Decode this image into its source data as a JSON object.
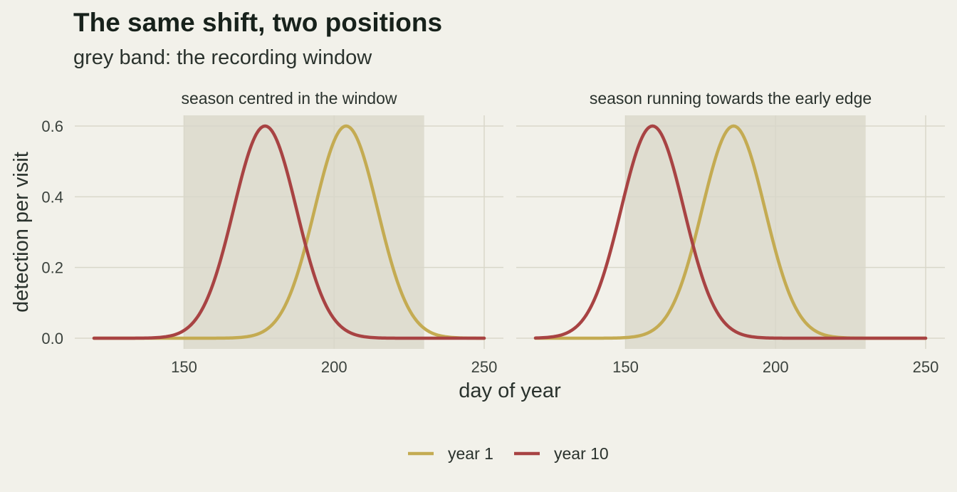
{
  "chart_data": {
    "type": "line",
    "title": "The same shift, two positions",
    "subtitle": "grey band: the recording window",
    "xlabel": "day of year",
    "ylabel": "detection per visit",
    "xlim": [
      120,
      250
    ],
    "ylim": [
      0,
      0.6
    ],
    "x_ticks": [
      150,
      200,
      250
    ],
    "y_ticks": [
      0.0,
      0.2,
      0.4,
      0.6
    ],
    "y_tick_labels": [
      "0.0",
      "0.2",
      "0.4",
      "0.6"
    ],
    "window": [
      150,
      230
    ],
    "grid": true,
    "legend_position": "bottom",
    "series_styles": [
      {
        "name": "year 1",
        "color": "#c4ab52"
      },
      {
        "name": "year 10",
        "color": "#a84343"
      }
    ],
    "panels": [
      {
        "title": "season centred in the window",
        "series": [
          {
            "name": "year 1",
            "peak_day": 204,
            "peak_value": 0.6,
            "sd_days": 10.5
          },
          {
            "name": "year 10",
            "peak_day": 177,
            "peak_value": 0.6,
            "sd_days": 10.5
          }
        ]
      },
      {
        "title": "season running towards the early edge",
        "series": [
          {
            "name": "year 1",
            "peak_day": 186,
            "peak_value": 0.6,
            "sd_days": 10.5
          },
          {
            "name": "year 10",
            "peak_day": 159,
            "peak_value": 0.6,
            "sd_days": 10.5
          }
        ]
      }
    ]
  }
}
